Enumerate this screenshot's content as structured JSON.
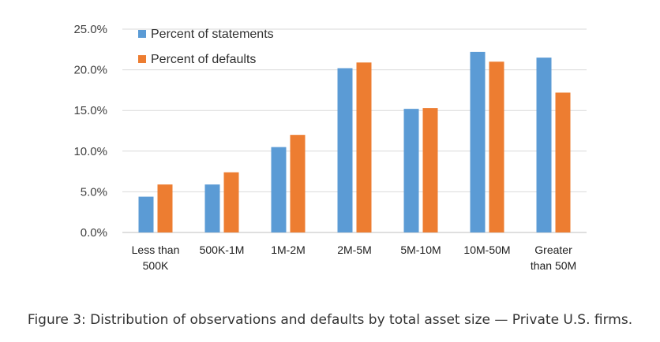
{
  "caption": "Figure 3: Distribution of observations and defaults by total asset size — Private U.S. firms.",
  "chart_data": {
    "type": "bar",
    "categories": [
      [
        "Less than",
        "500K"
      ],
      [
        "500K-1M"
      ],
      [
        "1M-2M"
      ],
      [
        "2M-5M"
      ],
      [
        "5M-10M"
      ],
      [
        "10M-50M"
      ],
      [
        "Greater",
        "than 50M"
      ]
    ],
    "series": [
      {
        "name": "Percent of statements",
        "color": "#5b9bd5",
        "values": [
          4.4,
          5.9,
          10.5,
          20.2,
          15.2,
          22.2,
          21.5
        ]
      },
      {
        "name": "Percent of defaults",
        "color": "#ed7d31",
        "values": [
          5.9,
          7.4,
          12.0,
          20.9,
          15.3,
          21.0,
          17.2
        ]
      }
    ],
    "ylim": [
      0,
      25
    ],
    "yticks": [
      "0.0%",
      "5.0%",
      "10.0%",
      "15.0%",
      "20.0%",
      "25.0%"
    ],
    "ytick_values": [
      0,
      5,
      10,
      15,
      20,
      25
    ],
    "grid": true,
    "legend_position": "top-left"
  }
}
